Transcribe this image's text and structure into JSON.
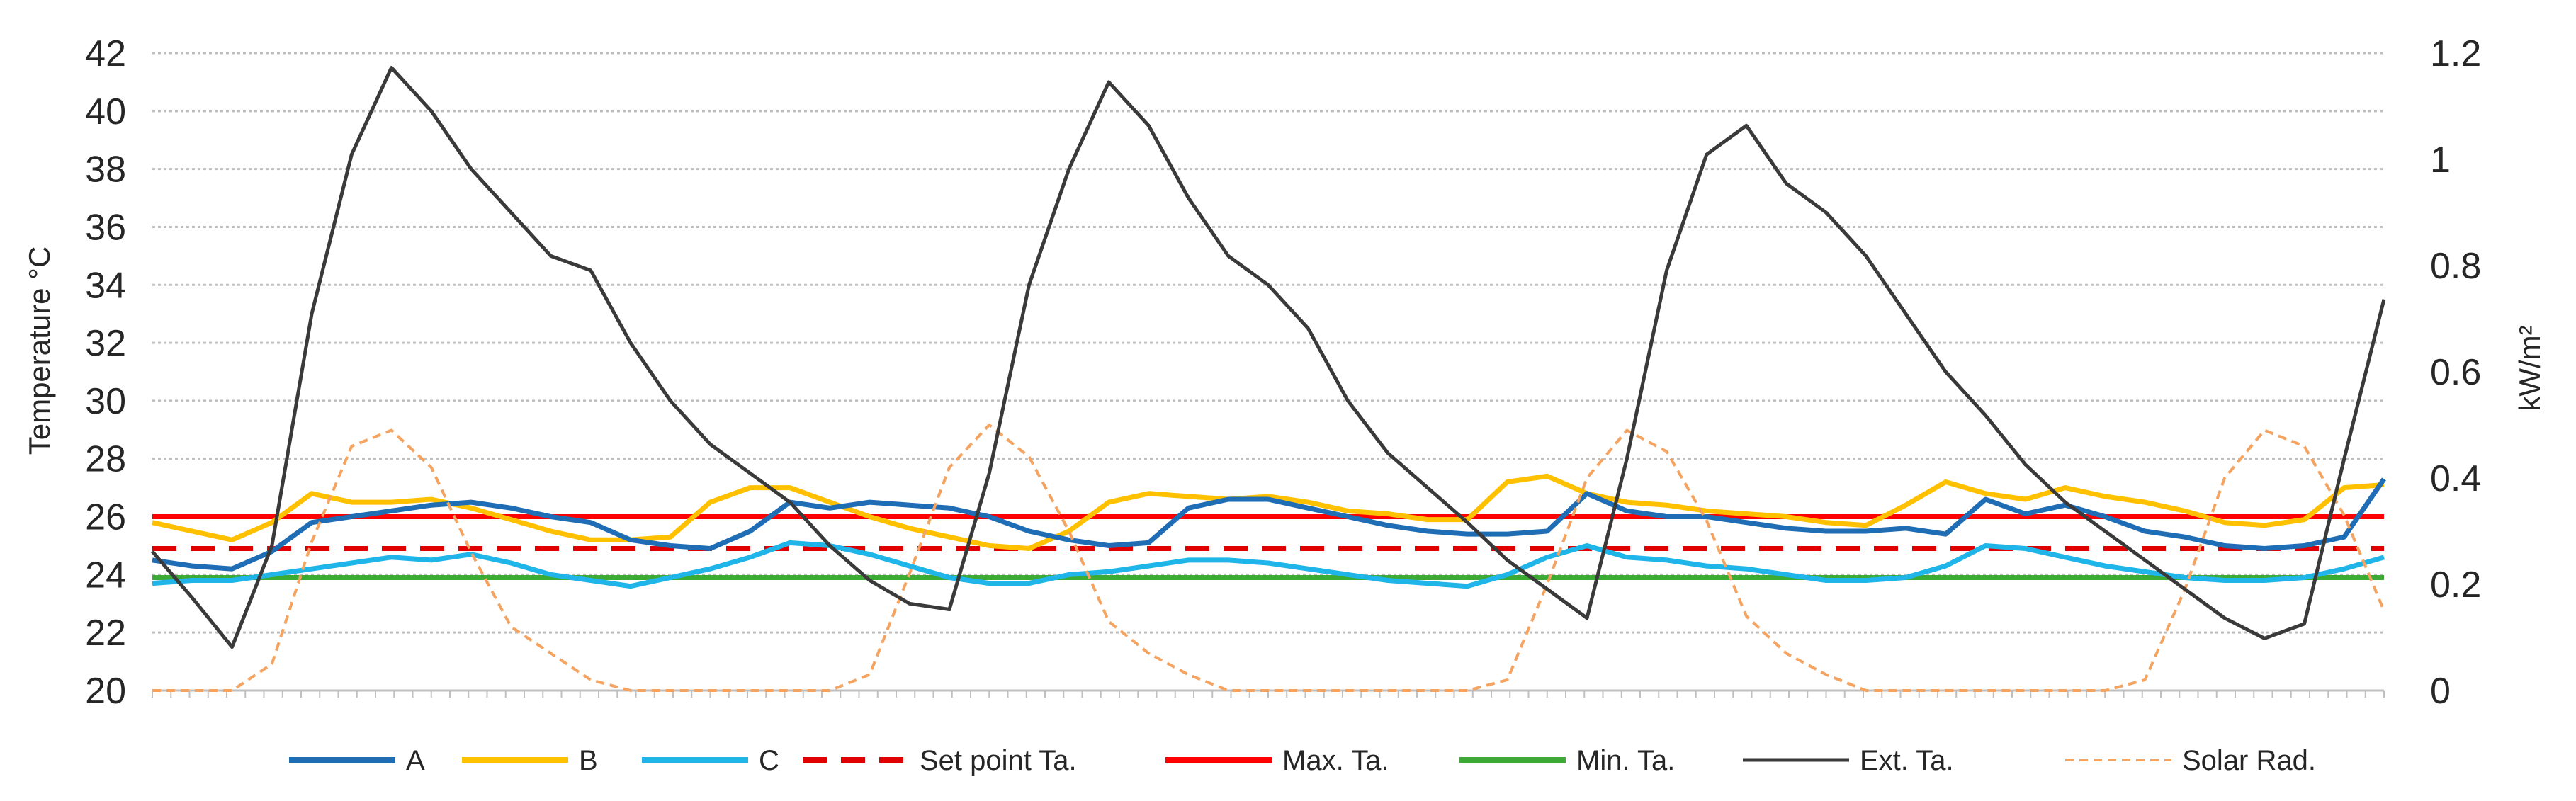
{
  "chart_data": {
    "type": "line",
    "title": "",
    "ylabel": "Temperature °C",
    "y2label": "kW/m²",
    "ylim": [
      20,
      42
    ],
    "y2lim": [
      0,
      1.2
    ],
    "yticks": [
      "20",
      "22",
      "24",
      "26",
      "28",
      "30",
      "32",
      "34",
      "36",
      "38",
      "40",
      "42"
    ],
    "y2ticks": [
      "0",
      "0.2",
      "0.4",
      "0.6",
      "0.8",
      "1",
      "1.2"
    ],
    "grid": true,
    "legend_position": "bottom",
    "x": [
      0,
      3,
      6,
      9,
      12,
      15,
      18,
      21,
      24,
      27,
      30,
      33,
      36,
      39,
      42,
      45,
      48,
      51,
      54,
      57,
      60,
      63,
      66,
      69,
      72,
      75,
      78,
      81,
      84,
      87,
      90,
      93,
      96,
      99,
      102,
      105,
      108,
      111,
      114,
      117,
      120,
      123,
      126,
      129,
      132,
      135,
      138,
      141,
      144,
      147,
      150,
      153,
      156,
      159,
      162,
      165,
      168
    ],
    "series": [
      {
        "name": "A",
        "axis": "left",
        "color": "#1F6DB5",
        "style": "solid",
        "values": [
          24.5,
          24.3,
          24.2,
          24.8,
          25.8,
          26.0,
          26.2,
          26.4,
          26.5,
          26.3,
          26.0,
          25.8,
          25.2,
          25.0,
          24.9,
          25.5,
          26.5,
          26.3,
          26.5,
          26.4,
          26.3,
          26.0,
          25.5,
          25.2,
          25.0,
          25.1,
          26.3,
          26.6,
          26.6,
          26.3,
          26.0,
          25.7,
          25.5,
          25.4,
          25.4,
          25.5,
          26.8,
          26.2,
          26.0,
          26.0,
          25.8,
          25.6,
          25.5,
          25.5,
          25.6,
          25.4,
          26.6,
          26.1,
          26.4,
          26.0,
          25.5,
          25.3,
          25.0,
          24.9,
          25.0,
          25.3,
          27.3
        ]
      },
      {
        "name": "B",
        "axis": "left",
        "color": "#FFC000",
        "style": "solid",
        "values": [
          25.8,
          25.5,
          25.2,
          25.8,
          26.8,
          26.5,
          26.5,
          26.6,
          26.3,
          25.9,
          25.5,
          25.2,
          25.2,
          25.3,
          26.5,
          27.0,
          27.0,
          26.5,
          26.0,
          25.6,
          25.3,
          25.0,
          24.9,
          25.5,
          26.5,
          26.8,
          26.7,
          26.6,
          26.7,
          26.5,
          26.2,
          26.1,
          25.9,
          25.9,
          27.2,
          27.4,
          26.8,
          26.5,
          26.4,
          26.2,
          26.1,
          26.0,
          25.8,
          25.7,
          26.4,
          27.2,
          26.8,
          26.6,
          27.0,
          26.7,
          26.5,
          26.2,
          25.8,
          25.7,
          25.9,
          27.0,
          27.1
        ]
      },
      {
        "name": "C",
        "axis": "left",
        "color": "#1FB5E8",
        "style": "solid",
        "values": [
          23.7,
          23.8,
          23.8,
          24.0,
          24.2,
          24.4,
          24.6,
          24.5,
          24.7,
          24.4,
          24.0,
          23.8,
          23.6,
          23.9,
          24.2,
          24.6,
          25.1,
          25.0,
          24.7,
          24.3,
          23.9,
          23.7,
          23.7,
          24.0,
          24.1,
          24.3,
          24.5,
          24.5,
          24.4,
          24.2,
          24.0,
          23.8,
          23.7,
          23.6,
          24.0,
          24.6,
          25.0,
          24.6,
          24.5,
          24.3,
          24.2,
          24.0,
          23.8,
          23.8,
          23.9,
          24.3,
          25.0,
          24.9,
          24.6,
          24.3,
          24.1,
          23.9,
          23.8,
          23.8,
          23.9,
          24.2,
          24.6
        ]
      },
      {
        "name": "Set point Ta.",
        "axis": "left",
        "color": "#E00000",
        "style": "dashed",
        "values": [
          24.9,
          24.9,
          24.9,
          24.9,
          24.9,
          24.9,
          24.9,
          24.9,
          24.9,
          24.9,
          24.9,
          24.9,
          24.9,
          24.9,
          24.9,
          24.9,
          24.9,
          24.9,
          24.9,
          24.9,
          24.9,
          24.9,
          24.9,
          24.9,
          24.9,
          24.9,
          24.9,
          24.9,
          24.9,
          24.9,
          24.9,
          24.9,
          24.9,
          24.9,
          24.9,
          24.9,
          24.9,
          24.9,
          24.9,
          24.9,
          24.9,
          24.9,
          24.9,
          24.9,
          24.9,
          24.9,
          24.9,
          24.9,
          24.9,
          24.9,
          24.9,
          24.9,
          24.9,
          24.9,
          24.9,
          24.9,
          24.9
        ]
      },
      {
        "name": "Max. Ta.",
        "axis": "left",
        "color": "#FF0000",
        "style": "solid",
        "values": [
          26.0,
          26.0,
          26.0,
          26.0,
          26.0,
          26.0,
          26.0,
          26.0,
          26.0,
          26.0,
          26.0,
          26.0,
          26.0,
          26.0,
          26.0,
          26.0,
          26.0,
          26.0,
          26.0,
          26.0,
          26.0,
          26.0,
          26.0,
          26.0,
          26.0,
          26.0,
          26.0,
          26.0,
          26.0,
          26.0,
          26.0,
          26.0,
          26.0,
          26.0,
          26.0,
          26.0,
          26.0,
          26.0,
          26.0,
          26.0,
          26.0,
          26.0,
          26.0,
          26.0,
          26.0,
          26.0,
          26.0,
          26.0,
          26.0,
          26.0,
          26.0,
          26.0,
          26.0,
          26.0,
          26.0,
          26.0,
          26.0
        ]
      },
      {
        "name": "Min. Ta.",
        "axis": "left",
        "color": "#3DAA35",
        "style": "solid",
        "values": [
          23.9,
          23.9,
          23.9,
          23.9,
          23.9,
          23.9,
          23.9,
          23.9,
          23.9,
          23.9,
          23.9,
          23.9,
          23.9,
          23.9,
          23.9,
          23.9,
          23.9,
          23.9,
          23.9,
          23.9,
          23.9,
          23.9,
          23.9,
          23.9,
          23.9,
          23.9,
          23.9,
          23.9,
          23.9,
          23.9,
          23.9,
          23.9,
          23.9,
          23.9,
          23.9,
          23.9,
          23.9,
          23.9,
          23.9,
          23.9,
          23.9,
          23.9,
          23.9,
          23.9,
          23.9,
          23.9,
          23.9,
          23.9,
          23.9,
          23.9,
          23.9,
          23.9,
          23.9,
          23.9,
          23.9,
          23.9,
          23.9
        ]
      },
      {
        "name": "Ext. Ta.",
        "axis": "left",
        "color": "#3A3A3A",
        "style": "solid",
        "values": [
          24.8,
          23.2,
          21.5,
          25.0,
          33.0,
          38.5,
          41.5,
          40.0,
          38.0,
          36.5,
          35.0,
          34.5,
          32.0,
          30.0,
          28.5,
          27.5,
          26.5,
          25.0,
          23.8,
          23.0,
          22.8,
          27.5,
          34.0,
          38.0,
          41.0,
          39.5,
          37.0,
          35.0,
          34.0,
          32.5,
          30.0,
          28.2,
          27.0,
          25.8,
          24.5,
          23.5,
          22.5,
          28.0,
          34.5,
          38.5,
          39.5,
          37.5,
          36.5,
          35.0,
          33.0,
          31.0,
          29.5,
          27.8,
          26.5,
          25.5,
          24.5,
          23.5,
          22.5,
          21.8,
          22.3,
          28.0,
          33.5
        ]
      },
      {
        "name": "Solar Rad.",
        "axis": "right",
        "color": "#F4A460",
        "style": "dotted",
        "values": [
          0.0,
          0.0,
          0.0,
          0.05,
          0.28,
          0.46,
          0.49,
          0.42,
          0.26,
          0.12,
          0.07,
          0.02,
          0.0,
          0.0,
          0.0,
          0.0,
          0.0,
          0.0,
          0.03,
          0.22,
          0.42,
          0.5,
          0.44,
          0.3,
          0.13,
          0.07,
          0.03,
          0.0,
          0.0,
          0.0,
          0.0,
          0.0,
          0.0,
          0.0,
          0.02,
          0.2,
          0.4,
          0.49,
          0.45,
          0.32,
          0.14,
          0.07,
          0.03,
          0.0,
          0.0,
          0.0,
          0.0,
          0.0,
          0.0,
          0.0,
          0.02,
          0.19,
          0.4,
          0.49,
          0.46,
          0.33,
          0.15
        ]
      }
    ]
  }
}
